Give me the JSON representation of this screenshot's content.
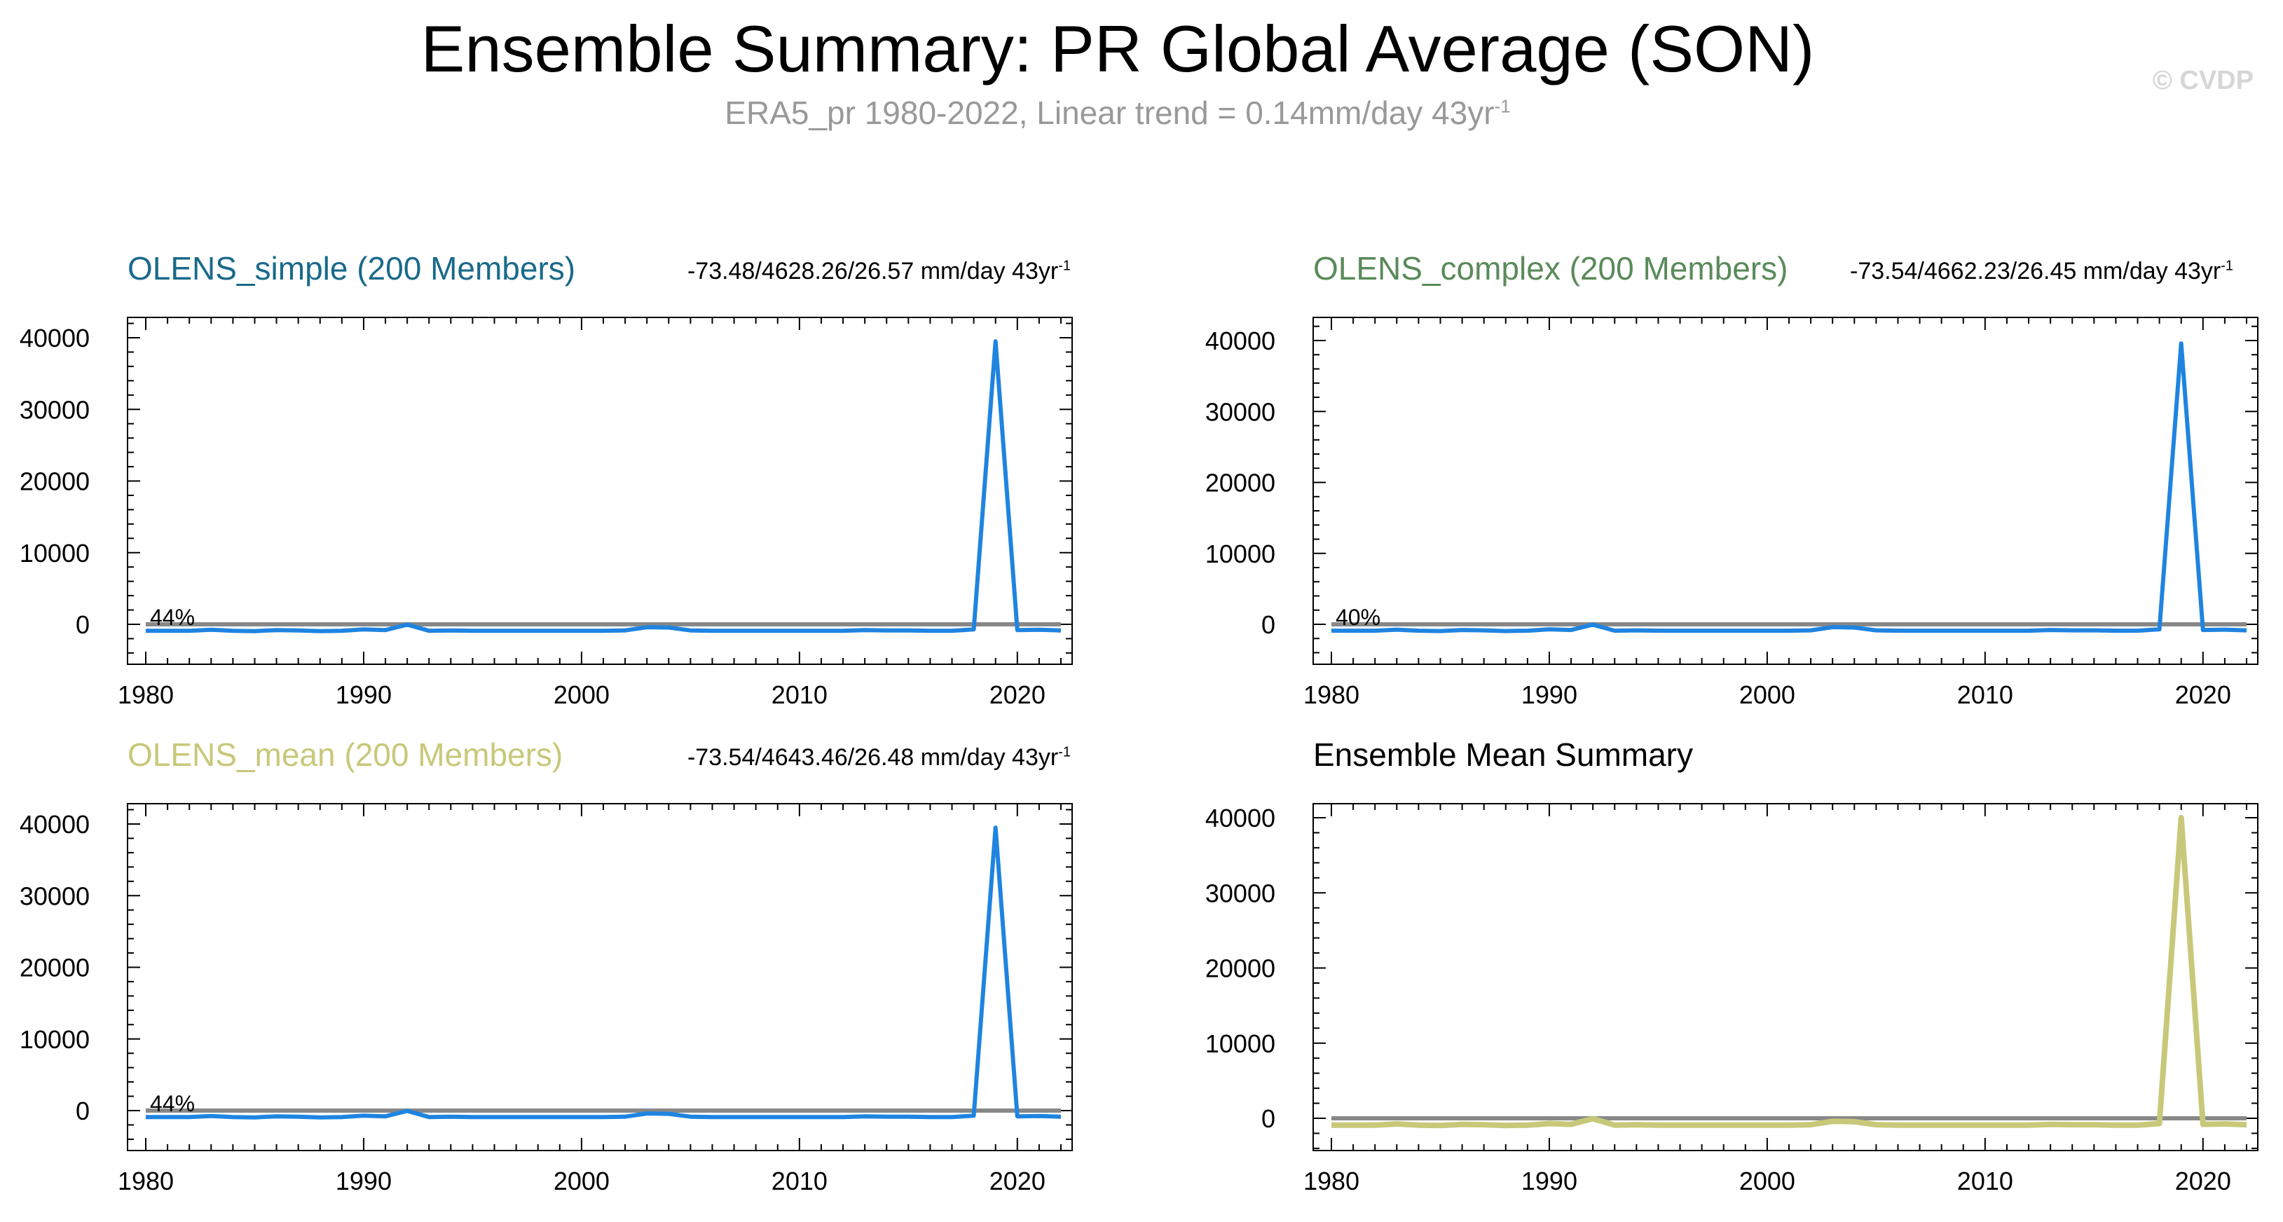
{
  "header": {
    "title": "Ensemble Summary: PR Global Average (SON)",
    "subtitle_text": "ERA5_pr 1980-2022, Linear trend = 0.14mm/day 43yr",
    "subtitle_sup": "-1",
    "watermark": "© CVDP"
  },
  "colors": {
    "simple": "#1a6a8a",
    "complex": "#5a8a5a",
    "mean": "#c8c87a",
    "series_blue": "#1f84e0",
    "zero_line": "#888888",
    "mean_summary_line": "#c8c87a"
  },
  "chart_data": [
    {
      "type": "line",
      "title": "OLENS_simple (200 Members)",
      "stats_text": "-73.48/4628.26/26.57 mm/day 43yr",
      "stats_sup": "-1",
      "percent_label": "44%",
      "xlim": [
        1980,
        2022
      ],
      "ylim": [
        -4500,
        45000
      ],
      "x_ticks": [
        1980,
        1990,
        2000,
        2010,
        2020
      ],
      "y_ticks": [
        0,
        10000,
        20000,
        30000,
        40000
      ],
      "series": [
        {
          "color": "#1f84e0",
          "x": [
            1980,
            1981,
            1982,
            1983,
            1984,
            1985,
            1986,
            1987,
            1988,
            1989,
            1990,
            1991,
            1992,
            1993,
            1994,
            1995,
            1996,
            1997,
            1998,
            1999,
            2000,
            2001,
            2002,
            2003,
            2004,
            2005,
            2006,
            2007,
            2008,
            2009,
            2010,
            2011,
            2012,
            2013,
            2014,
            2015,
            2016,
            2017,
            2018,
            2019,
            2020,
            2021,
            2022
          ],
          "y": [
            -900,
            -900,
            -900,
            -750,
            -900,
            -950,
            -800,
            -850,
            -950,
            -900,
            -700,
            -800,
            -50,
            -900,
            -850,
            -900,
            -900,
            -900,
            -900,
            -900,
            -900,
            -900,
            -850,
            -400,
            -450,
            -850,
            -900,
            -900,
            -900,
            -900,
            -900,
            -900,
            -900,
            -800,
            -850,
            -850,
            -900,
            -900,
            -700,
            39500,
            -800,
            -750,
            -850
          ]
        }
      ]
    },
    {
      "type": "line",
      "title": "OLENS_complex (200 Members)",
      "stats_text": "-73.54/4662.23/26.45 mm/day 43yr",
      "stats_sup": "-1",
      "percent_label": "40%",
      "xlim": [
        1980,
        2022
      ],
      "ylim": [
        -4500,
        45000
      ],
      "x_ticks": [
        1980,
        1990,
        2000,
        2010,
        2020
      ],
      "y_ticks": [
        0,
        10000,
        20000,
        30000,
        40000
      ],
      "series": [
        {
          "color": "#1f84e0",
          "x": [
            1980,
            1981,
            1982,
            1983,
            1984,
            1985,
            1986,
            1987,
            1988,
            1989,
            1990,
            1991,
            1992,
            1993,
            1994,
            1995,
            1996,
            1997,
            1998,
            1999,
            2000,
            2001,
            2002,
            2003,
            2004,
            2005,
            2006,
            2007,
            2008,
            2009,
            2010,
            2011,
            2012,
            2013,
            2014,
            2015,
            2016,
            2017,
            2018,
            2019,
            2020,
            2021,
            2022
          ],
          "y": [
            -900,
            -900,
            -900,
            -750,
            -900,
            -950,
            -800,
            -850,
            -950,
            -900,
            -700,
            -800,
            -50,
            -900,
            -850,
            -900,
            -900,
            -900,
            -900,
            -900,
            -900,
            -900,
            -850,
            -400,
            -450,
            -850,
            -900,
            -900,
            -900,
            -900,
            -900,
            -900,
            -900,
            -800,
            -850,
            -850,
            -900,
            -900,
            -700,
            39600,
            -800,
            -750,
            -850
          ]
        }
      ]
    },
    {
      "type": "line",
      "title": "OLENS_mean (200 Members)",
      "stats_text": "-73.54/4643.46/26.48 mm/day 43yr",
      "stats_sup": "-1",
      "percent_label": "44%",
      "xlim": [
        1980,
        2022
      ],
      "ylim": [
        -4500,
        45000
      ],
      "x_ticks": [
        1980,
        1990,
        2000,
        2010,
        2020
      ],
      "y_ticks": [
        0,
        10000,
        20000,
        30000,
        40000
      ],
      "series": [
        {
          "color": "#1f84e0",
          "x": [
            1980,
            1981,
            1982,
            1983,
            1984,
            1985,
            1986,
            1987,
            1988,
            1989,
            1990,
            1991,
            1992,
            1993,
            1994,
            1995,
            1996,
            1997,
            1998,
            1999,
            2000,
            2001,
            2002,
            2003,
            2004,
            2005,
            2006,
            2007,
            2008,
            2009,
            2010,
            2011,
            2012,
            2013,
            2014,
            2015,
            2016,
            2017,
            2018,
            2019,
            2020,
            2021,
            2022
          ],
          "y": [
            -900,
            -900,
            -900,
            -750,
            -900,
            -950,
            -800,
            -850,
            -950,
            -900,
            -700,
            -800,
            -50,
            -900,
            -850,
            -900,
            -900,
            -900,
            -900,
            -900,
            -900,
            -900,
            -850,
            -400,
            -450,
            -850,
            -900,
            -900,
            -900,
            -900,
            -900,
            -900,
            -900,
            -800,
            -850,
            -850,
            -900,
            -900,
            -700,
            39500,
            -800,
            -750,
            -850
          ]
        }
      ]
    },
    {
      "type": "line",
      "title": "Ensemble Mean Summary",
      "stats_text": "",
      "stats_sup": "",
      "percent_label": "",
      "xlim": [
        1980,
        2022
      ],
      "ylim": [
        -4000,
        43000
      ],
      "x_ticks": [
        1980,
        1990,
        2000,
        2010,
        2020
      ],
      "y_ticks": [
        0,
        10000,
        20000,
        30000,
        40000
      ],
      "series": [
        {
          "color": "#c8c87a",
          "x": [
            1980,
            1981,
            1982,
            1983,
            1984,
            1985,
            1986,
            1987,
            1988,
            1989,
            1990,
            1991,
            1992,
            1993,
            1994,
            1995,
            1996,
            1997,
            1998,
            1999,
            2000,
            2001,
            2002,
            2003,
            2004,
            2005,
            2006,
            2007,
            2008,
            2009,
            2010,
            2011,
            2012,
            2013,
            2014,
            2015,
            2016,
            2017,
            2018,
            2019,
            2020,
            2021,
            2022
          ],
          "y": [
            -900,
            -900,
            -900,
            -750,
            -900,
            -950,
            -800,
            -850,
            -950,
            -900,
            -700,
            -800,
            -50,
            -900,
            -850,
            -900,
            -900,
            -900,
            -900,
            -900,
            -900,
            -900,
            -850,
            -400,
            -450,
            -850,
            -900,
            -900,
            -900,
            -900,
            -900,
            -900,
            -900,
            -800,
            -850,
            -850,
            -900,
            -900,
            -700,
            40000,
            -800,
            -750,
            -850
          ]
        }
      ]
    }
  ]
}
